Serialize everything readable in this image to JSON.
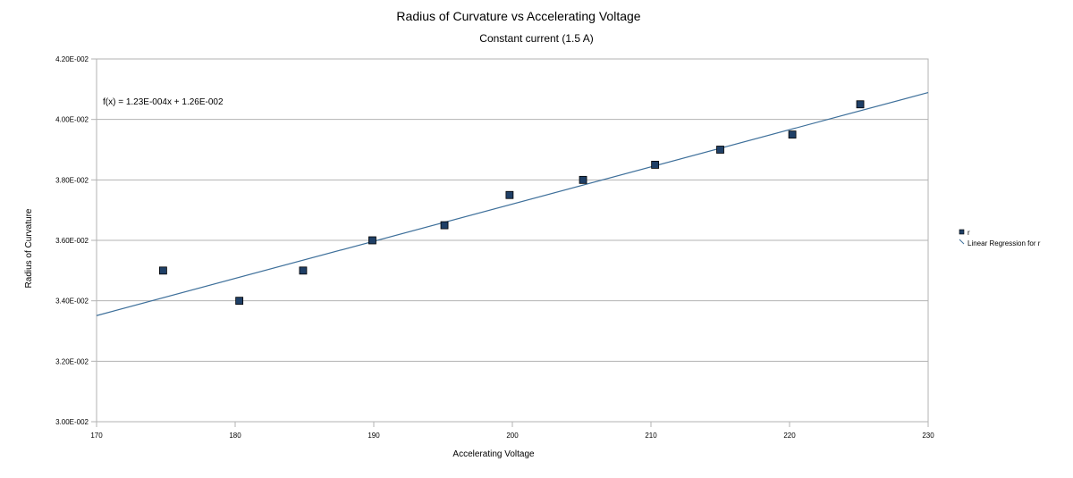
{
  "chart_data": {
    "type": "scatter",
    "title": "Radius of Curvature vs Accelerating Voltage",
    "subtitle": "Constant current (1.5 A)",
    "xlabel": "Accelerating Voltage",
    "ylabel": "Radius of Curvature",
    "xlim": [
      170,
      230
    ],
    "ylim": [
      0.03,
      0.042
    ],
    "x_ticks": [
      170,
      180,
      190,
      200,
      210,
      220,
      230
    ],
    "x_tick_labels": [
      "170",
      "180",
      "190",
      "200",
      "210",
      "220",
      "230"
    ],
    "y_ticks": [
      0.03,
      0.032,
      0.034,
      0.036,
      0.038,
      0.04,
      0.042
    ],
    "y_tick_labels": [
      "3.00E-002",
      "3.20E-002",
      "3.40E-002",
      "3.60E-002",
      "3.80E-002",
      "4.00E-002",
      "4.20E-002"
    ],
    "grid": "horizontal",
    "legend_position": "right",
    "series": [
      {
        "name": "r",
        "marker": "square",
        "color": "#1f3f66",
        "x": [
          174.8,
          180.3,
          184.9,
          189.9,
          195.1,
          199.8,
          205.1,
          210.3,
          215.0,
          220.2,
          225.1
        ],
        "y": [
          0.035,
          0.034,
          0.035,
          0.036,
          0.0365,
          0.0375,
          0.038,
          0.0385,
          0.039,
          0.0395,
          0.0405
        ]
      },
      {
        "name": "Linear Regression for r",
        "type": "line",
        "color": "#3d6f9a",
        "slope": 0.000123,
        "intercept": 0.0126
      }
    ],
    "annotation": "f(x) = 1.23E-004x + 1.26E-002"
  }
}
